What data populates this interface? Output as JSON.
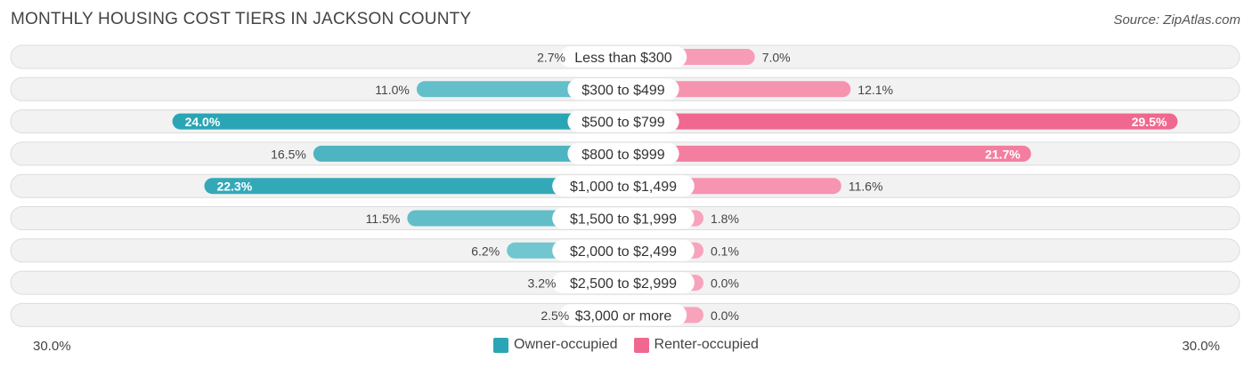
{
  "title": "MONTHLY HOUSING COST TIERS IN JACKSON COUNTY",
  "source": "Source: ZipAtlas.com",
  "colors": {
    "owner_dark": "#2aa5b5",
    "owner_light": "#7ccbd3",
    "renter_dark": "#f0688f",
    "renter_light": "#f8a3bc",
    "row_bg": "#f2f2f2",
    "row_border": "#dcdcdc"
  },
  "chart_data": {
    "type": "bar",
    "orientation": "diverging-horizontal",
    "title": "MONTHLY HOUSING COST TIERS IN JACKSON COUNTY",
    "categories": [
      "Less than $300",
      "$300 to $499",
      "$500 to $799",
      "$800 to $999",
      "$1,000 to $1,499",
      "$1,500 to $1,999",
      "$2,000 to $2,499",
      "$2,500 to $2,999",
      "$3,000 or more"
    ],
    "series": [
      {
        "name": "Owner-occupied",
        "values": [
          2.7,
          11.0,
          24.0,
          16.5,
          22.3,
          11.5,
          6.2,
          3.2,
          2.5
        ],
        "labels": [
          "2.7%",
          "11.0%",
          "24.0%",
          "16.5%",
          "22.3%",
          "11.5%",
          "6.2%",
          "3.2%",
          "2.5%"
        ]
      },
      {
        "name": "Renter-occupied",
        "values": [
          7.0,
          12.1,
          29.5,
          21.7,
          11.6,
          1.8,
          0.1,
          0.0,
          0.0
        ],
        "labels": [
          "7.0%",
          "12.1%",
          "29.5%",
          "21.7%",
          "11.6%",
          "1.8%",
          "0.1%",
          "0.0%",
          "0.0%"
        ]
      }
    ],
    "xlim": [
      -30,
      30
    ],
    "axis_left_label": "30.0%",
    "axis_right_label": "30.0%",
    "legend_position": "bottom-center"
  }
}
